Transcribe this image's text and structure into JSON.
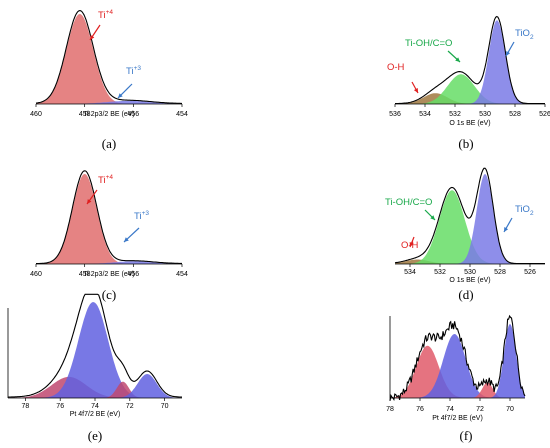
{
  "chart_data": [
    {
      "id": "a",
      "panel_label": "(a)",
      "type": "area",
      "xlabel": "Ti 2p3/2  BE (eV)",
      "xlim": [
        460,
        454
      ],
      "reversed_x": true,
      "xticks": [
        460,
        458,
        456,
        454
      ],
      "annotations": [
        {
          "text": "Ti",
          "sup": "+4",
          "color": "#e02020"
        },
        {
          "text": "Ti",
          "sup": "+3",
          "color": "#3a78c8"
        }
      ],
      "series": [
        {
          "color": "#e06d6d",
          "peaks": [
            {
              "center": 458.2,
              "height": 1.0,
              "width": 0.55
            }
          ]
        },
        {
          "color": "#7a7ae6",
          "peaks": [
            {
              "center": 456.2,
              "height": 0.035,
              "width": 0.9
            }
          ]
        }
      ]
    },
    {
      "id": "b",
      "panel_label": "(b)",
      "type": "area",
      "xlabel": "O 1s  BE (eV)",
      "xlim": [
        536,
        526
      ],
      "reversed_x": true,
      "xticks": [
        536,
        534,
        532,
        530,
        528,
        526
      ],
      "annotations": [
        {
          "text": "O-H",
          "color": "#e02020"
        },
        {
          "text": "Ti-OH/C=O",
          "color": "#19a84a"
        },
        {
          "text": "TiO",
          "sub": "2",
          "color": "#3a78c8"
        }
      ],
      "series": [
        {
          "color": "#a07840",
          "peaks": [
            {
              "center": 533.3,
              "height": 0.12,
              "width": 0.8
            }
          ]
        },
        {
          "color": "#66dd66",
          "peaks": [
            {
              "center": 531.6,
              "height": 0.33,
              "width": 0.9
            }
          ]
        },
        {
          "color": "#7a7ae6",
          "peaks": [
            {
              "center": 529.2,
              "height": 0.93,
              "width": 0.55
            }
          ]
        }
      ]
    },
    {
      "id": "c",
      "panel_label": "(c)",
      "type": "area",
      "xlabel": "Ti 2p3/2  BE (eV)",
      "xlim": [
        460,
        454
      ],
      "reversed_x": true,
      "xticks": [
        460,
        458,
        456,
        454
      ],
      "annotations": [
        {
          "text": "Ti",
          "sup": "+4",
          "color": "#e02020"
        },
        {
          "text": "Ti",
          "sup": "+3",
          "color": "#3a78c8"
        }
      ],
      "series": [
        {
          "color": "#e06d6d",
          "peaks": [
            {
              "center": 458.0,
              "height": 1.0,
              "width": 0.5
            }
          ]
        },
        {
          "color": "#7a7ae6",
          "peaks": [
            {
              "center": 456.0,
              "height": 0.03,
              "width": 0.8
            }
          ]
        }
      ]
    },
    {
      "id": "d",
      "panel_label": "(d)",
      "type": "area",
      "xlabel": "O 1s  BE (eV)",
      "xlim": [
        535,
        525
      ],
      "reversed_x": true,
      "xticks": [
        534,
        532,
        530,
        528,
        526
      ],
      "annotations": [
        {
          "text": "O-H",
          "color": "#e02020"
        },
        {
          "text": "Ti-OH/C=O",
          "color": "#19a84a"
        },
        {
          "text": "TiO",
          "sub": "2",
          "color": "#3a78c8"
        }
      ],
      "series": [
        {
          "color": "#a07840",
          "peaks": [
            {
              "center": 533.5,
              "height": 0.05,
              "width": 0.8
            }
          ]
        },
        {
          "color": "#66dd66",
          "peaks": [
            {
              "center": 531.2,
              "height": 0.82,
              "width": 0.85
            }
          ]
        },
        {
          "color": "#7a7ae6",
          "peaks": [
            {
              "center": 529.0,
              "height": 1.0,
              "width": 0.55
            }
          ]
        }
      ]
    },
    {
      "id": "e",
      "panel_label": "(e)",
      "type": "area",
      "xlabel": "Pt 4f7/2  BE (eV)",
      "xlim": [
        79,
        69
      ],
      "reversed_x": true,
      "xticks": [
        78,
        76,
        74,
        72,
        70
      ],
      "series": [
        {
          "color": "#c04870",
          "peaks": [
            {
              "center": 75.5,
              "height": 0.22,
              "width": 1.0
            }
          ]
        },
        {
          "color": "#6060e0",
          "peaks": [
            {
              "center": 74.1,
              "height": 1.0,
              "width": 0.85
            }
          ]
        },
        {
          "color": "#c04870",
          "peaks": [
            {
              "center": 72.4,
              "height": 0.17,
              "width": 0.35
            }
          ]
        },
        {
          "color": "#6060e0",
          "peaks": [
            {
              "center": 71.0,
              "height": 0.25,
              "width": 0.55
            }
          ]
        }
      ]
    },
    {
      "id": "f",
      "panel_label": "(f)",
      "type": "area",
      "xlabel": "Pt 4f7/2  BE (eV)",
      "xlim": [
        78,
        69
      ],
      "reversed_x": true,
      "xticks": [
        78,
        76,
        74,
        72,
        70
      ],
      "series": [
        {
          "color": "#e05a6a",
          "peaks": [
            {
              "center": 75.5,
              "height": 0.67,
              "width": 0.75
            }
          ]
        },
        {
          "color": "#6060e0",
          "peaks": [
            {
              "center": 73.7,
              "height": 0.82,
              "width": 0.75
            }
          ]
        },
        {
          "color": "#e05a6a",
          "peaks": [
            {
              "center": 71.5,
              "height": 0.2,
              "width": 0.35
            }
          ]
        },
        {
          "color": "#6060e0",
          "peaks": [
            {
              "center": 70.0,
              "height": 0.95,
              "width": 0.4
            }
          ]
        }
      ]
    }
  ]
}
